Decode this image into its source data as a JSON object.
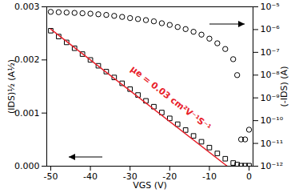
{
  "chart_data": {
    "type": "scatter",
    "xlabel": "VGS (V)",
    "ylabel": "(IDS)½ (A½)",
    "y2label": "(-IDS) (A)",
    "log": "y2",
    "xlim": [
      -51,
      1
    ],
    "xticks": [
      -50,
      -40,
      -30,
      -20,
      -10,
      0
    ],
    "ylim": [
      0,
      0.003
    ],
    "yticks": [
      {
        "value": 0,
        "label": "0.000"
      },
      {
        "value": 0.001,
        "label": "0.001"
      },
      {
        "value": 0.002,
        "label": "0.002"
      },
      {
        "value": 0.003,
        "label": "0.003"
      }
    ],
    "y2lim": [
      1e-12,
      1e-05
    ],
    "y2ticks": [
      {
        "value": 1e-12,
        "label": "10⁻¹²"
      },
      {
        "value": 1e-11,
        "label": "10⁻¹¹"
      },
      {
        "value": 1e-10,
        "label": "10⁻¹⁰"
      },
      {
        "value": 1e-09,
        "label": "10⁻⁹"
      },
      {
        "value": 1e-08,
        "label": "10⁻⁸"
      },
      {
        "value": 1e-07,
        "label": "10⁻⁷"
      },
      {
        "value": 1e-06,
        "label": "10⁻⁶"
      },
      {
        "value": 1e-05,
        "label": "10⁻⁵"
      }
    ],
    "x": [
      -50,
      -48,
      -46,
      -44,
      -42,
      -40,
      -38,
      -36,
      -34,
      -32,
      -30,
      -28,
      -26,
      -24,
      -22,
      -20,
      -18,
      -16,
      -14,
      -12,
      -10,
      -8,
      -6,
      -4,
      -3,
      -2,
      -1,
      0
    ],
    "series": [
      {
        "type": "scatter",
        "marker": "square",
        "color": "#000000",
        "values": [
          0.00255,
          0.00244,
          0.00233,
          0.00222,
          0.00211,
          0.002,
          0.00189,
          0.00178,
          0.00167,
          0.00156,
          0.00145,
          0.00134,
          0.00123,
          0.00112,
          0.00101,
          0.0009,
          0.00079,
          0.00068,
          0.00057,
          0.00046,
          0.00035,
          0.00024,
          0.00014,
          6e-05,
          3e-05,
          1e-05,
          1e-05,
          1e-05
        ]
      },
      {
        "type": "line",
        "color": "#e8202a",
        "x": [
          -50,
          -5.5
        ],
        "values": [
          0.00258,
          0
        ]
      },
      {
        "type": "scatter",
        "marker": "circle",
        "color": "#000000",
        "axis": "y2",
        "values": [
          6e-06,
          5.8e-06,
          5.6e-06,
          5.4e-06,
          5.2e-06,
          5e-06,
          4.7e-06,
          4.4e-06,
          4e-06,
          3.6e-06,
          3.2e-06,
          2.9e-06,
          2.6e-06,
          2.3e-06,
          1.9e-06,
          1.6e-06,
          1.3e-06,
          1.05e-06,
          8e-07,
          6e-07,
          4e-07,
          2.5e-07,
          1.4e-07,
          5e-08,
          1e-08,
          1.5e-11,
          1.5e-11,
          4e-11
        ]
      }
    ],
    "annotations": [
      {
        "text": "μe = 0.03 cm²V⁻¹S⁻¹",
        "color": "#e8202a"
      }
    ]
  }
}
